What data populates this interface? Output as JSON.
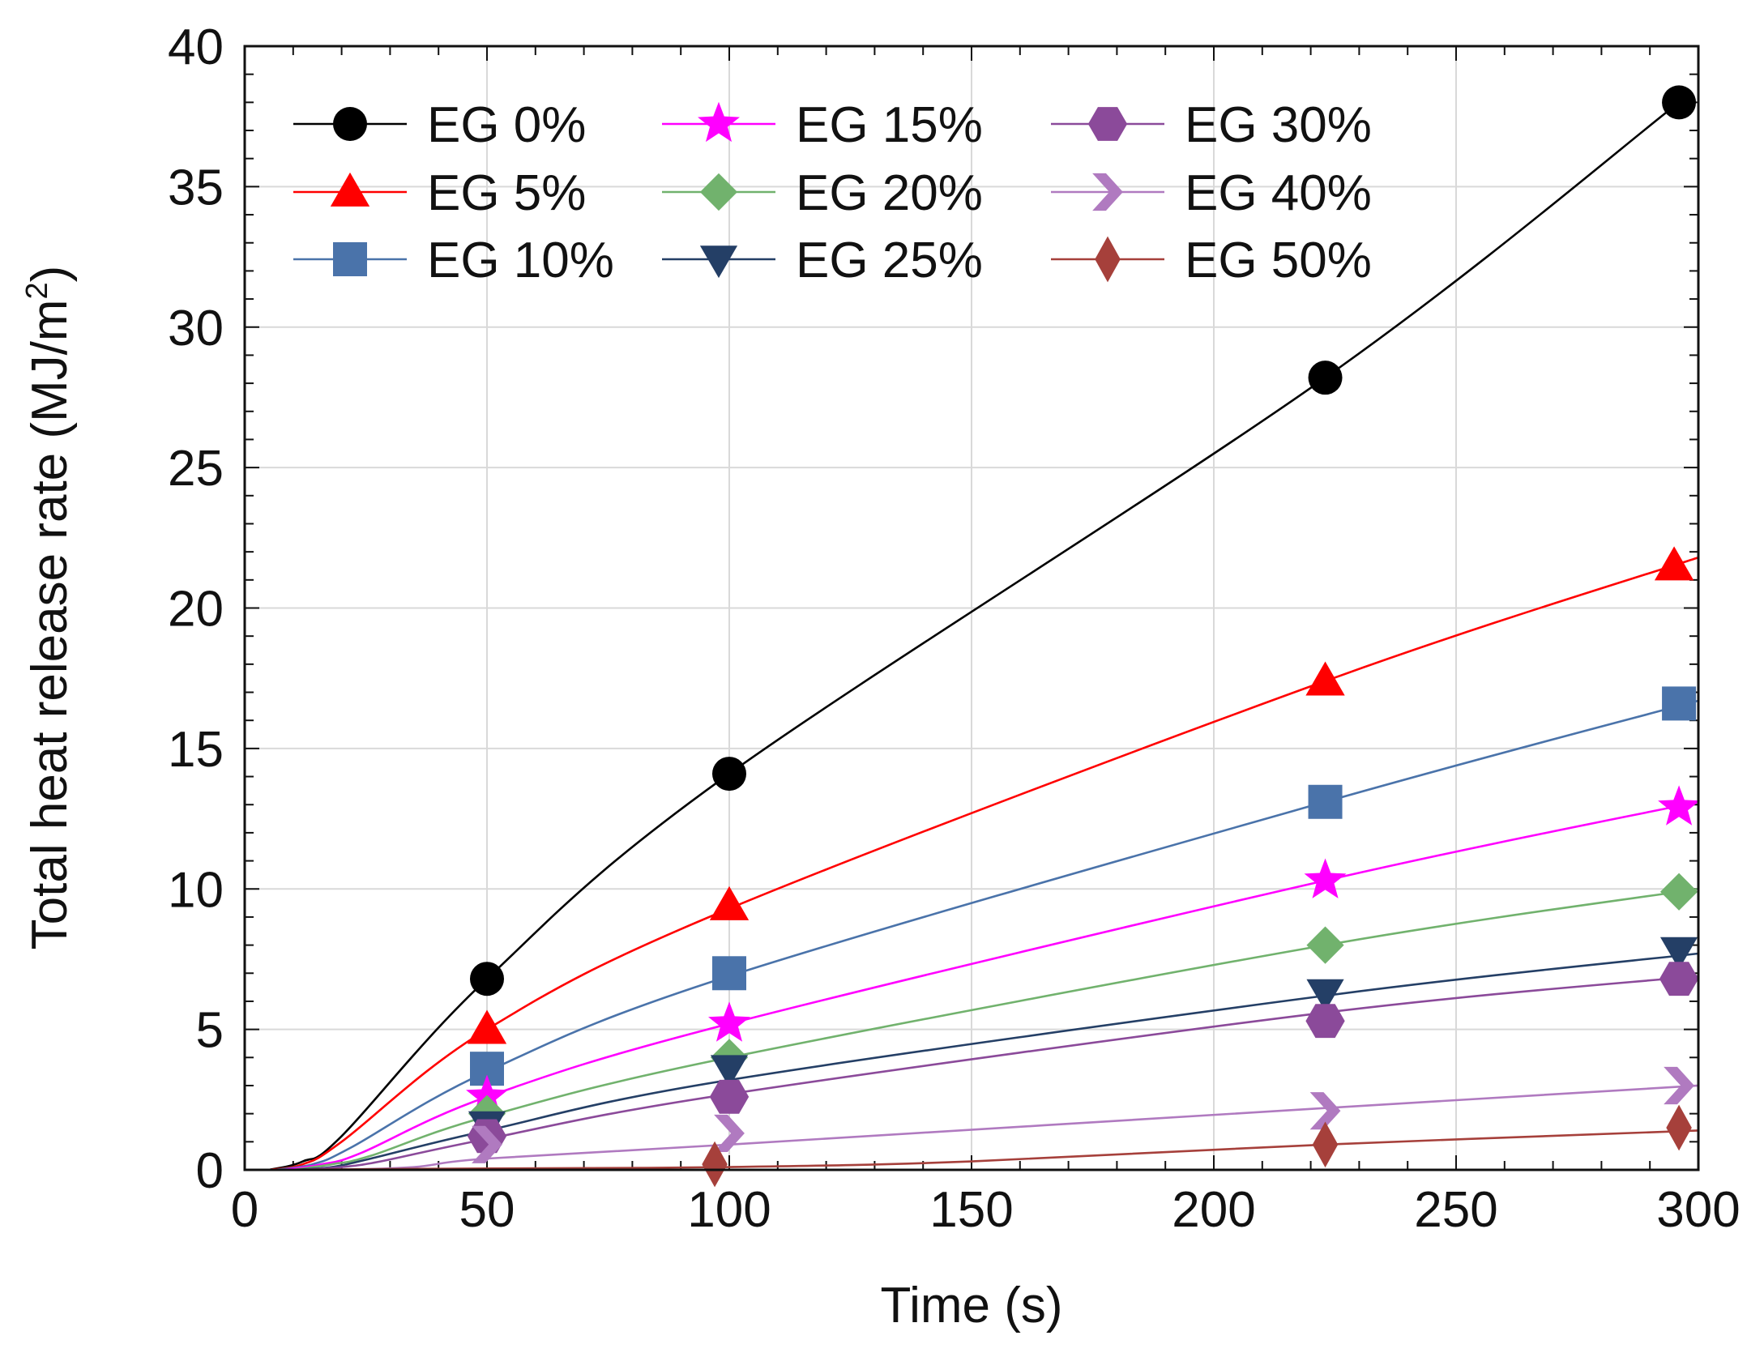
{
  "chart_data": {
    "type": "line",
    "title": "",
    "xlabel": "Time (s)",
    "ylabel": "Total heat release rate (MJ/m",
    "ylabel_sup": "2",
    "ylabel_close": ")",
    "xlim": [
      0,
      300
    ],
    "ylim": [
      0,
      40
    ],
    "xticks": [
      0,
      50,
      100,
      150,
      200,
      250,
      300
    ],
    "yticks": [
      0,
      5,
      10,
      15,
      20,
      25,
      30,
      35,
      40
    ],
    "x_minor_step": 10,
    "y_minor_step": 1,
    "grid": true,
    "legend_position": "top-left",
    "series": [
      {
        "name": "EG 0%",
        "marker": "circle",
        "color": "#000000",
        "line_color": "#000000",
        "x": [
          5,
          12,
          20,
          50,
          100,
          223,
          296
        ],
        "y": [
          0,
          0.3,
          1.2,
          6.8,
          14.1,
          28.2,
          38.0
        ],
        "mx": [
          50,
          100,
          223,
          296
        ],
        "my": [
          6.8,
          14.1,
          28.2,
          38.0
        ]
      },
      {
        "name": "EG 5%",
        "marker": "triangle-up",
        "color": "#ff0000",
        "line_color": "#ff0000",
        "x": [
          5,
          12,
          20,
          50,
          100,
          223,
          300
        ],
        "y": [
          0,
          0.2,
          1.0,
          5.0,
          9.3,
          17.4,
          21.8
        ],
        "mx": [
          50,
          100,
          223,
          295
        ],
        "my": [
          5.0,
          9.4,
          17.4,
          21.5
        ]
      },
      {
        "name": "EG 10%",
        "marker": "square",
        "color": "#4a73aa",
        "line_color": "#4a73aa",
        "x": [
          6,
          14,
          22,
          50,
          100,
          223,
          300
        ],
        "y": [
          0,
          0.2,
          0.8,
          3.5,
          6.9,
          13.1,
          16.7
        ],
        "mx": [
          50,
          100,
          223,
          296
        ],
        "my": [
          3.6,
          7.0,
          13.1,
          16.6
        ]
      },
      {
        "name": "EG 15%",
        "marker": "star",
        "color": "#ff00ff",
        "line_color": "#ff00ff",
        "x": [
          8,
          16,
          24,
          50,
          100,
          223,
          300
        ],
        "y": [
          0,
          0.2,
          0.6,
          2.6,
          5.2,
          10.3,
          13.1
        ],
        "mx": [
          50,
          100,
          223,
          296
        ],
        "my": [
          2.6,
          5.2,
          10.3,
          12.9
        ]
      },
      {
        "name": "EG 20%",
        "marker": "diamond",
        "color": "#71b26d",
        "line_color": "#71b26d",
        "x": [
          10,
          18,
          26,
          50,
          100,
          223,
          300
        ],
        "y": [
          0,
          0.2,
          0.5,
          1.9,
          4.0,
          8.0,
          10.0
        ],
        "mx": [
          50,
          100,
          223,
          296
        ],
        "my": [
          2.0,
          4.0,
          8.0,
          9.9
        ]
      },
      {
        "name": "EG 25%",
        "marker": "triangle-down",
        "color": "#243f66",
        "line_color": "#243f66",
        "x": [
          10,
          18,
          26,
          50,
          100,
          223,
          300
        ],
        "y": [
          0,
          0.1,
          0.4,
          1.4,
          3.2,
          6.2,
          7.7
        ],
        "mx": [
          50,
          100,
          223,
          296
        ],
        "my": [
          1.6,
          3.6,
          6.3,
          7.8
        ]
      },
      {
        "name": "EG 30%",
        "marker": "hexagon",
        "color": "#8b4a9a",
        "line_color": "#8b4a9a",
        "x": [
          12,
          20,
          28,
          50,
          100,
          223,
          300
        ],
        "y": [
          0,
          0.1,
          0.3,
          1.1,
          2.7,
          5.6,
          6.9
        ],
        "mx": [
          50,
          100,
          223,
          296
        ],
        "my": [
          1.2,
          2.6,
          5.3,
          6.8
        ]
      },
      {
        "name": "EG 40%",
        "marker": "chevron-right",
        "color": "#b07ac0",
        "line_color": "#b07ac0",
        "x": [
          20,
          35,
          50,
          100,
          223,
          300
        ],
        "y": [
          0,
          0.1,
          0.4,
          0.9,
          2.2,
          3.0
        ],
        "mx": [
          50,
          100,
          223,
          296
        ],
        "my": [
          0.9,
          1.3,
          2.1,
          3.0
        ]
      },
      {
        "name": "EG 50%",
        "marker": "thin-diamond",
        "color": "#a6403b",
        "line_color": "#a6403b",
        "x": [
          5,
          50,
          100,
          150,
          223,
          300
        ],
        "y": [
          0,
          0.05,
          0.1,
          0.3,
          0.9,
          1.4
        ],
        "mx": [
          97,
          223,
          296
        ],
        "my": [
          0.2,
          0.9,
          1.5
        ]
      }
    ]
  }
}
